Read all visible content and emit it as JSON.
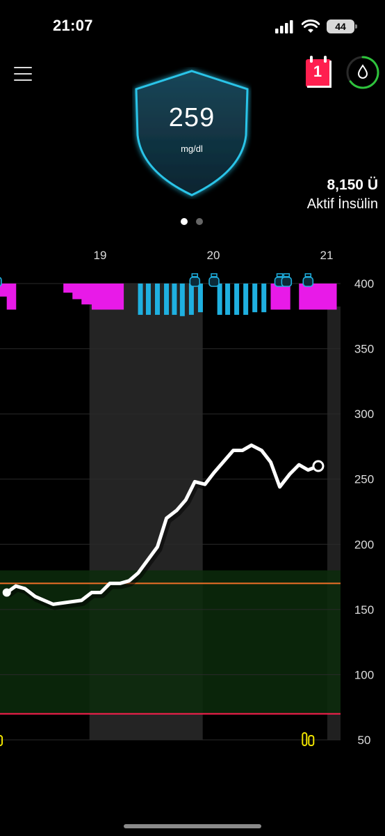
{
  "status_bar": {
    "time": "21:07",
    "battery": "44",
    "signal_icon": "cellular-signal-icon",
    "wifi_icon": "wifi-icon"
  },
  "header": {
    "menu_icon": "hamburger-menu-icon",
    "glucose_value": "259",
    "glucose_unit": "mg/dl",
    "calendar_badge": "1",
    "calendar_icon": "calendar-icon",
    "drop_icon": "blood-drop-icon",
    "insulin_amount": "8,150 Ü",
    "insulin_label": "Aktif İnsülin",
    "colors": {
      "shield_border": "#29c4e8",
      "shield_fill": "#123a4a",
      "calendar_red": "#ff1f4f",
      "ring_green": "#2ec43c"
    }
  },
  "pager": {
    "count": 2,
    "active": 0
  },
  "chart_data": {
    "type": "line",
    "x_ticks": [
      "19",
      "20",
      "21"
    ],
    "y_ticks": [
      400,
      350,
      300,
      250,
      200,
      150,
      100,
      50
    ],
    "ylim": [
      50,
      400
    ],
    "target_range": [
      70,
      180
    ],
    "high_limit_line": 170,
    "low_limit_line": 70,
    "series": [
      {
        "values": [
          [
            18.17,
            163
          ],
          [
            18.25,
            168
          ],
          [
            18.33,
            166
          ],
          [
            18.42,
            160
          ],
          [
            18.58,
            154
          ],
          [
            18.83,
            157
          ],
          [
            18.92,
            163
          ],
          [
            19.0,
            163
          ],
          [
            19.08,
            170
          ],
          [
            19.17,
            170
          ],
          [
            19.25,
            172
          ],
          [
            19.33,
            178
          ],
          [
            19.5,
            198
          ],
          [
            19.58,
            220
          ],
          [
            19.67,
            226
          ],
          [
            19.75,
            234
          ],
          [
            19.83,
            248
          ],
          [
            19.92,
            246
          ],
          [
            20.0,
            255
          ],
          [
            20.08,
            263
          ],
          [
            20.17,
            272
          ],
          [
            20.25,
            272
          ],
          [
            20.33,
            276
          ],
          [
            20.42,
            272
          ],
          [
            20.5,
            263
          ],
          [
            20.58,
            244
          ],
          [
            20.67,
            254
          ],
          [
            20.75,
            261
          ],
          [
            20.83,
            257
          ],
          [
            20.92,
            260
          ]
        ]
      }
    ],
    "current_point": [
      20.92,
      260
    ],
    "start_point": [
      18.17,
      163
    ],
    "basal_magenta_blocks": [
      [
        18.0,
        18.08,
        400,
        394
      ],
      [
        18.08,
        18.17,
        400,
        390
      ],
      [
        18.17,
        18.25,
        400,
        380
      ],
      [
        18.67,
        18.75,
        400,
        393
      ],
      [
        18.75,
        18.83,
        400,
        388
      ],
      [
        18.83,
        18.92,
        400,
        384
      ],
      [
        18.92,
        19.0,
        400,
        380
      ],
      [
        19.0,
        19.2,
        400,
        380
      ],
      [
        20.5,
        20.67,
        400,
        380
      ],
      [
        20.75,
        21.08,
        400,
        380
      ]
    ],
    "basal_blue_bars": [
      [
        19.35,
        376
      ],
      [
        19.42,
        376
      ],
      [
        19.5,
        376
      ],
      [
        19.58,
        376
      ],
      [
        19.65,
        376
      ],
      [
        19.72,
        375
      ],
      [
        19.8,
        376
      ],
      [
        19.88,
        378
      ],
      [
        20.05,
        376
      ],
      [
        20.12,
        376
      ],
      [
        20.2,
        376
      ],
      [
        20.28,
        376
      ],
      [
        20.36,
        378
      ],
      [
        20.44,
        378
      ]
    ],
    "bolus_markers": [
      18.08,
      19.83,
      20.0,
      20.58,
      20.64,
      20.83
    ],
    "cartridge_markers": [
      18.08,
      20.83
    ],
    "calibration_marker": [
      18.1,
      172
    ],
    "night_shading": [
      [
        18.9,
        19.9
      ]
    ],
    "grid": true,
    "colors": {
      "line": "#ffffff",
      "target_fill": "#0c2c0c",
      "night_fill": "#242424",
      "high_line": "#f07028",
      "low_line": "#ff1f4f",
      "basal_magenta": "#e81ae8",
      "basal_blue": "#1fb0e0",
      "cartridge_yellow": "#f2e600"
    }
  }
}
